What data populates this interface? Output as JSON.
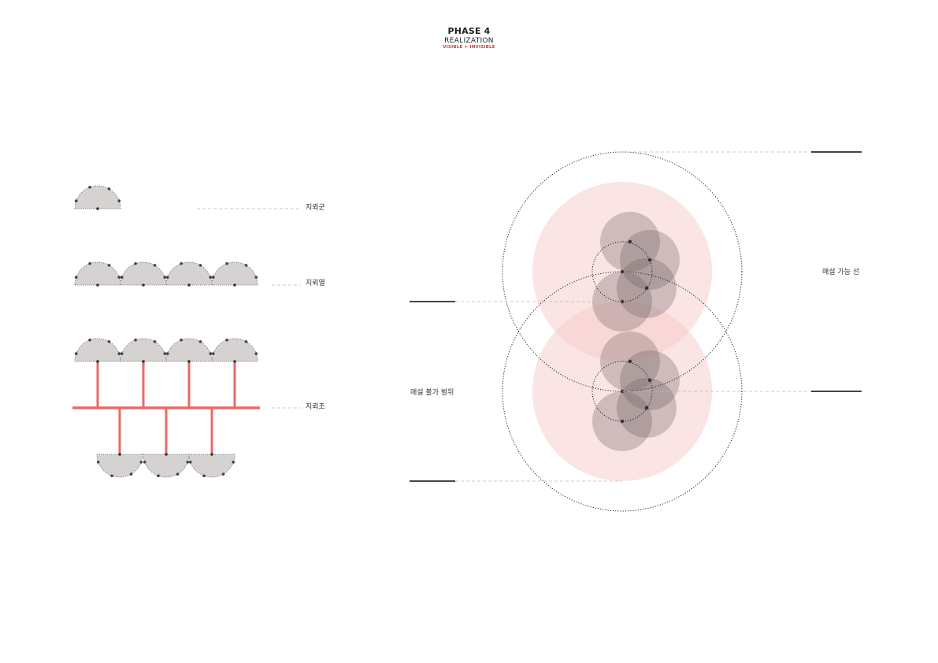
{
  "header": {
    "phase": "PHASE 4",
    "title": "REALIZATION",
    "subtitle": "VISIBLE + INVISIBLE"
  },
  "left_labels": {
    "group": "지뢰군",
    "row": "지뢰열",
    "set": "지뢰조"
  },
  "right_labels": {
    "possible_line": "매설 가능 선",
    "impossible_range": "매설 불가 범위"
  },
  "colors": {
    "dome_fill": "#d6d2d2",
    "red_line": "#e86a6a",
    "pink_zone": "#f7c9c9",
    "gray_circle": "#6b5d5d"
  }
}
